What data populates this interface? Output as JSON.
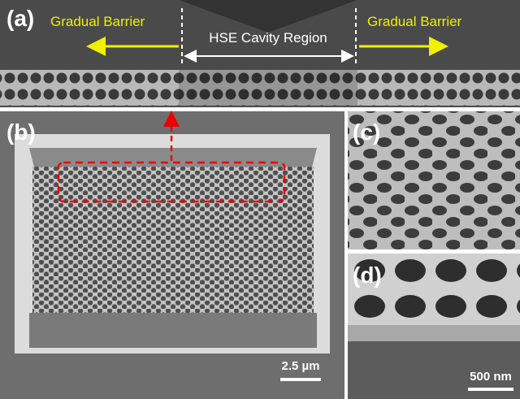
{
  "panels": [
    {
      "label": "(a)",
      "annotations": [
        "Gradual Barrier",
        "HSE Cavity Region",
        "Gradual Barrier"
      ]
    },
    {
      "label": "(b)",
      "scale_bar": "2.5 µm"
    },
    {
      "label": "(c)"
    },
    {
      "label": "(d)",
      "scale_bar": "500 nm"
    }
  ]
}
